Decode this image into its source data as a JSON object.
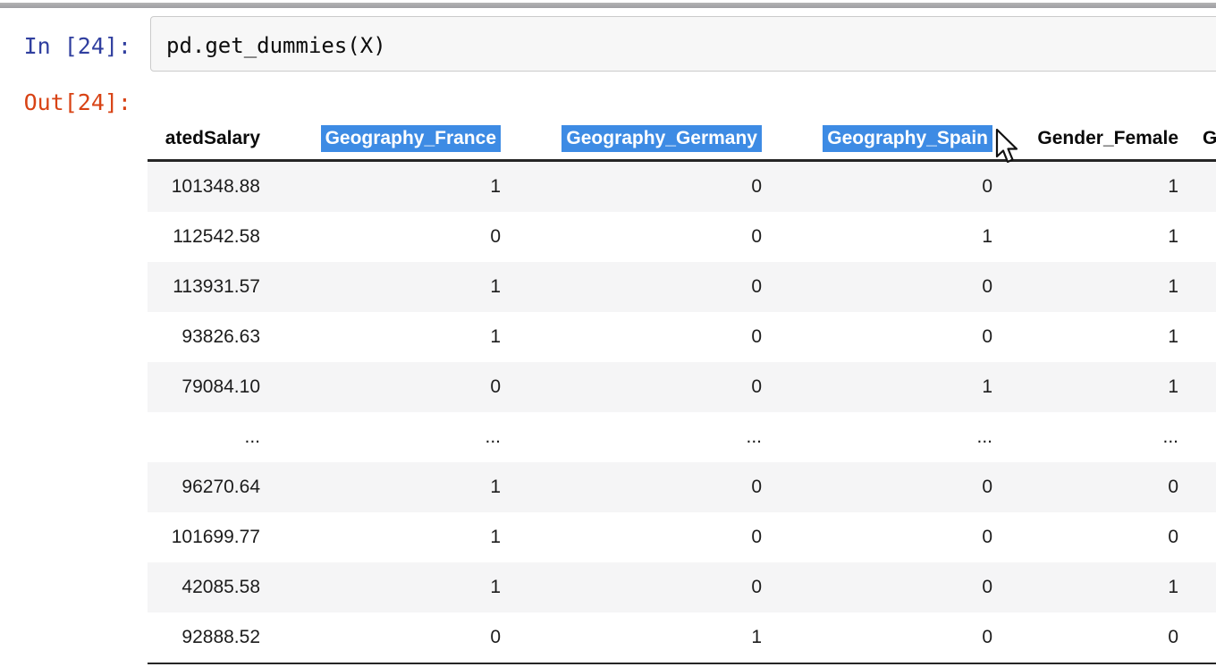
{
  "notebook": {
    "in_prompt": "In [24]:",
    "code": "pd.get_dummies(X)",
    "out_prompt": "Out[24]:"
  },
  "table": {
    "columns": [
      {
        "label": "atedSalary",
        "highlighted": false
      },
      {
        "label": "Geography_France",
        "highlighted": true
      },
      {
        "label": "Geography_Germany",
        "highlighted": true
      },
      {
        "label": "Geography_Spain",
        "highlighted": true
      },
      {
        "label": "Gender_Female",
        "highlighted": false
      },
      {
        "label": "G",
        "highlighted": false
      }
    ],
    "rows": [
      [
        "101348.88",
        "1",
        "0",
        "0",
        "1",
        ""
      ],
      [
        "112542.58",
        "0",
        "0",
        "1",
        "1",
        ""
      ],
      [
        "113931.57",
        "1",
        "0",
        "0",
        "1",
        ""
      ],
      [
        "93826.63",
        "1",
        "0",
        "0",
        "1",
        ""
      ],
      [
        "79084.10",
        "0",
        "0",
        "1",
        "1",
        ""
      ],
      [
        "...",
        "...",
        "...",
        "...",
        "...",
        ""
      ],
      [
        "96270.64",
        "1",
        "0",
        "0",
        "0",
        ""
      ],
      [
        "101699.77",
        "1",
        "0",
        "0",
        "0",
        ""
      ],
      [
        "42085.58",
        "1",
        "0",
        "0",
        "1",
        ""
      ],
      [
        "92888.52",
        "0",
        "1",
        "0",
        "0",
        ""
      ]
    ]
  },
  "icons": {
    "cursor": "arrow-pointer-icon"
  },
  "colors": {
    "selection_highlight": "#3D8BE4",
    "in_prompt_blue": "#303F9F",
    "out_prompt_orange": "#D84315",
    "row_stripe": "#f5f5f6"
  }
}
